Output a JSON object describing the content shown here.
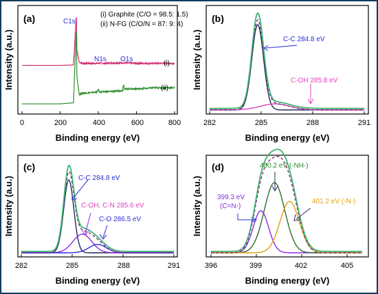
{
  "chart_data": [
    {
      "panel": "(a)",
      "type": "line",
      "xlabel": "Binding energy (eV)",
      "ylabel": "Intensity (a.u.)",
      "xlim": [
        0,
        800
      ],
      "xticks": [
        "0",
        "200",
        "400",
        "600",
        "800"
      ],
      "legend": [
        "(i) Graphite (C/O = 98.5: 1.5)",
        "(ii) N-FG (C/O/N = 87: 9: 4)"
      ],
      "peak_labels": [
        {
          "text": "C1s",
          "x": 285,
          "color": "#2b2bd8"
        },
        {
          "text": "N1s",
          "x": 400,
          "color": "#2b2bd8"
        },
        {
          "text": "O1s",
          "x": 532,
          "color": "#2b2bd8"
        }
      ],
      "curve_labels": [
        "(i)",
        "(ii)"
      ],
      "series": [
        {
          "id": "i",
          "color": "#d0286e",
          "points": [
            [
              0,
              0.06
            ],
            [
              100,
              0.06
            ],
            [
              200,
              0.06
            ],
            [
              270,
              0.07
            ],
            [
              284.8,
              1.0
            ],
            [
              288,
              0.35
            ],
            [
              300,
              0.12
            ],
            [
              320,
              0.1
            ],
            [
              400,
              0.1
            ],
            [
              532,
              0.11
            ],
            [
              600,
              0.1
            ],
            [
              700,
              0.1
            ],
            [
              800,
              0.1
            ]
          ]
        },
        {
          "id": "ii",
          "color": "#2e8b2e",
          "points": [
            [
              0,
              -0.4
            ],
            [
              100,
              -0.4
            ],
            [
              200,
              -0.4
            ],
            [
              270,
              -0.38
            ],
            [
              284.8,
              1.0
            ],
            [
              288,
              0.1
            ],
            [
              300,
              -0.22
            ],
            [
              320,
              -0.2
            ],
            [
              395,
              -0.18
            ],
            [
              400,
              -0.12
            ],
            [
              405,
              -0.18
            ],
            [
              500,
              -0.16
            ],
            [
              528,
              -0.15
            ],
            [
              532,
              -0.02
            ],
            [
              536,
              -0.12
            ],
            [
              600,
              -0.12
            ],
            [
              700,
              -0.1
            ],
            [
              800,
              -0.1
            ]
          ]
        }
      ]
    },
    {
      "panel": "(b)",
      "type": "line",
      "xlabel": "Binding energy (eV)",
      "ylabel": "Intensity (a.u.)",
      "xlim": [
        282,
        291
      ],
      "xticks": [
        "282",
        "285",
        "288",
        "291"
      ],
      "annotations": [
        {
          "text": "C-C 284.8 eV",
          "color": "#2b2bd8"
        },
        {
          "text": "C-OH 285.8 eV",
          "color": "#e040c0"
        }
      ],
      "components": [
        {
          "name": "C-C",
          "center": 284.8,
          "fwhm": 0.8,
          "height": 0.85,
          "color": "#1f2a5c"
        },
        {
          "name": "C-OH",
          "center": 285.8,
          "fwhm": 2.0,
          "height": 0.06,
          "color": "#e040c0"
        }
      ],
      "envelope_color": "#3cb371",
      "fit_color": "#7a1f6b"
    },
    {
      "panel": "(c)",
      "type": "line",
      "xlabel": "Binding energy (eV)",
      "ylabel": "Intensity (a.u.)",
      "xlim": [
        282,
        291
      ],
      "xticks": [
        "282",
        "285",
        "288",
        "291"
      ],
      "annotations": [
        {
          "text": "C-C 284.8 eV",
          "color": "#2b2bd8"
        },
        {
          "text": "C-OH, C-N 285.6 eV",
          "color": "#e040c0"
        },
        {
          "text": "C-O 286.5 eV",
          "color": "#2b2bd8"
        }
      ],
      "components": [
        {
          "name": "C-C",
          "center": 284.8,
          "fwhm": 0.7,
          "height": 0.78,
          "color": "#1f2a5c"
        },
        {
          "name": "C-OH, C-N",
          "center": 285.6,
          "fwhm": 1.3,
          "height": 0.2,
          "color": "#8a2be2"
        },
        {
          "name": "C-O",
          "center": 286.5,
          "fwhm": 1.2,
          "height": 0.09,
          "color": "#2b2bd8"
        }
      ],
      "envelope_color": "#3cb371",
      "fit_color": "#7a1f6b"
    },
    {
      "panel": "(d)",
      "type": "line",
      "xlabel": "Binding energy (eV)",
      "ylabel": "Intensity (a.u.)",
      "xlim": [
        396,
        406
      ],
      "xticks": [
        "396",
        "399",
        "402",
        "405"
      ],
      "annotations": [
        {
          "text": "400.2 eV (-NH-)",
          "color": "#2e8b2e"
        },
        {
          "text": "399.3 eV",
          "color": "#8a2be2"
        },
        {
          "text": "(C=N-)",
          "color": "#8a2be2"
        },
        {
          "text": "401.2 eV (-N-)",
          "color": "#e0a010"
        }
      ],
      "components": [
        {
          "name": "C=N-",
          "center": 399.3,
          "fwhm": 1.2,
          "height": 0.45,
          "color": "#8a2be2"
        },
        {
          "name": "-NH-",
          "center": 400.2,
          "fwhm": 1.6,
          "height": 0.75,
          "color": "#2e6b2e"
        },
        {
          "name": "-N-",
          "center": 401.2,
          "fwhm": 1.5,
          "height": 0.55,
          "color": "#e0a010"
        }
      ],
      "envelope_color": "#3cb371",
      "fit_color": "#7a1f6b"
    }
  ]
}
